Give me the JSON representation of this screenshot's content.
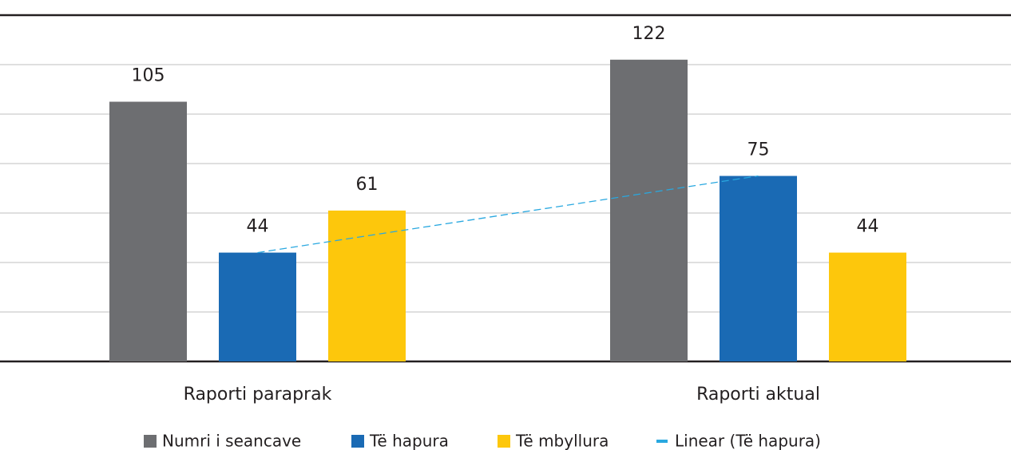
{
  "chart_data": {
    "type": "bar",
    "categories": [
      "Raporti paraprak",
      "Raporti aktual"
    ],
    "series": [
      {
        "name": "Numri i seancave",
        "color": "#6d6e71",
        "values": [
          105,
          122
        ]
      },
      {
        "name": "Të hapura",
        "color": "#1a6ab4",
        "values": [
          44,
          75
        ]
      },
      {
        "name": "Të mbyllura",
        "color": "#fdc70c",
        "values": [
          61,
          44
        ]
      }
    ],
    "trendline": {
      "name": "Linear (Të hapura)",
      "color": "#29a8e0",
      "dashed": true
    },
    "ylim": [
      0,
      140
    ],
    "yticks": [
      0,
      20,
      40,
      60,
      80,
      100,
      120,
      140
    ],
    "grid": true,
    "legend": "bottom"
  }
}
